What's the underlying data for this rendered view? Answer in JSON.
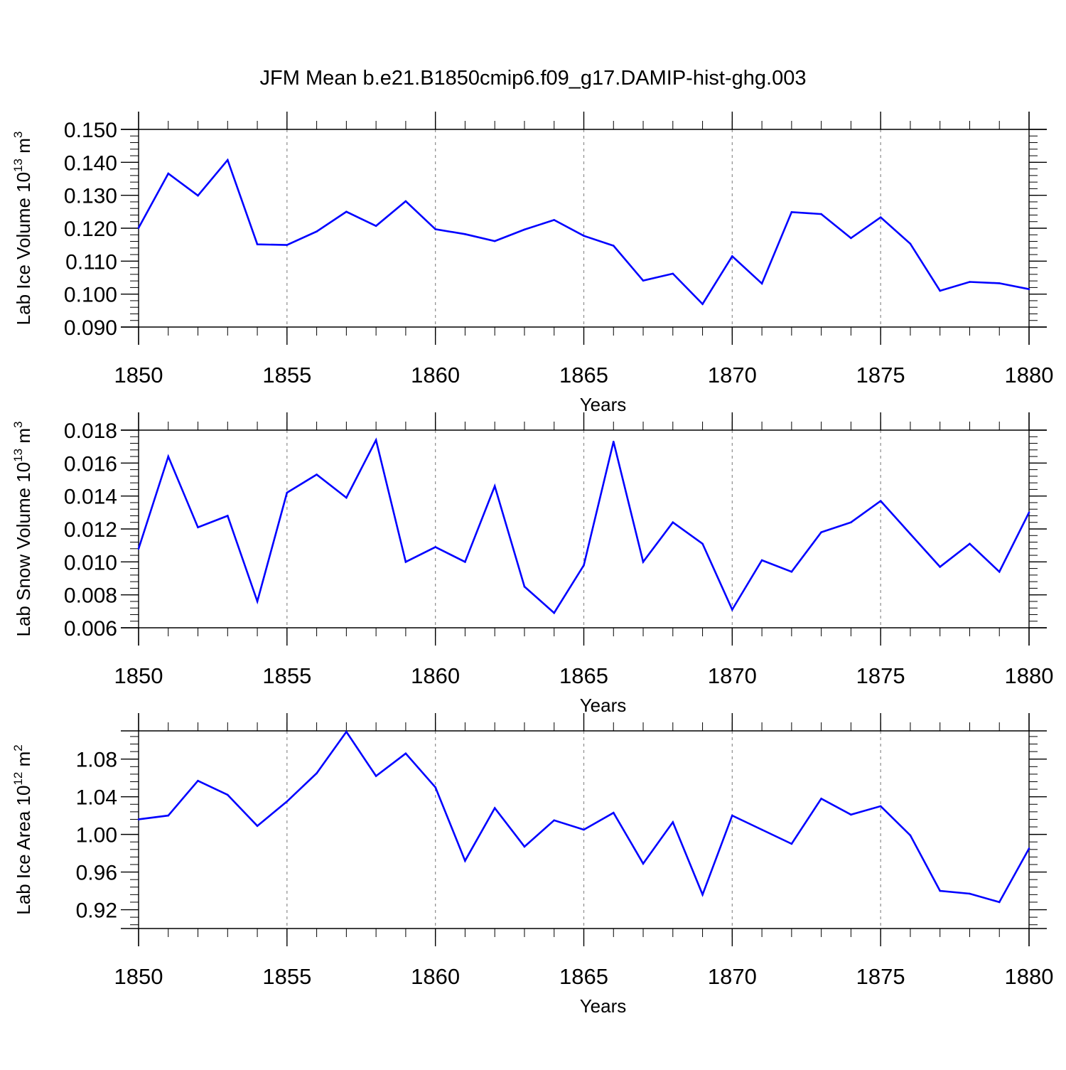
{
  "title": "JFM Mean b.e21.B1850cmip6.f09_g17.DAMIP-hist-ghg.003",
  "colors": {
    "line": "#0000ff",
    "axis": "#000000",
    "grid": "#8c8c8c"
  },
  "chart_data": [
    {
      "type": "line",
      "title": "JFM Mean b.e21.B1850cmip6.f09_g17.DAMIP-hist-ghg.003",
      "xlabel": "Years",
      "ylabel_text": "Lab Ice Volume 10",
      "ylabel_exp": "13",
      "ylabel_unit": " m",
      "ylabel_unit_exp": "3",
      "xlim": [
        1850,
        1880
      ],
      "ylim": [
        0.09,
        0.15
      ],
      "xticks": [
        1850,
        1855,
        1860,
        1865,
        1870,
        1875,
        1880
      ],
      "xtick_labels": [
        "1850",
        "1855",
        "1860",
        "1865",
        "1870",
        "1875",
        "1880"
      ],
      "yticks": [
        0.09,
        0.1,
        0.11,
        0.12,
        0.13,
        0.14,
        0.15
      ],
      "ytick_labels": [
        "0.090",
        "0.100",
        "0.110",
        "0.120",
        "0.130",
        "0.140",
        "0.150"
      ],
      "x": [
        1850,
        1851,
        1852,
        1853,
        1854,
        1855,
        1856,
        1857,
        1858,
        1859,
        1860,
        1861,
        1862,
        1863,
        1864,
        1865,
        1866,
        1867,
        1868,
        1869,
        1870,
        1871,
        1872,
        1873,
        1874,
        1875,
        1876,
        1877,
        1878,
        1879,
        1880
      ],
      "values": [
        0.1201,
        0.1366,
        0.1299,
        0.1407,
        0.1151,
        0.1149,
        0.119,
        0.125,
        0.1207,
        0.1282,
        0.1197,
        0.1182,
        0.1161,
        0.1196,
        0.1225,
        0.1177,
        0.1147,
        0.1041,
        0.1062,
        0.097,
        0.1115,
        0.1032,
        0.1249,
        0.1243,
        0.117,
        0.1233,
        0.1153,
        0.101,
        0.1037,
        0.1033,
        0.1015
      ]
    },
    {
      "type": "line",
      "xlabel": "Years",
      "ylabel_text": "Lab Snow Volume 10",
      "ylabel_exp": "13",
      "ylabel_unit": " m",
      "ylabel_unit_exp": "3",
      "xlim": [
        1850,
        1880
      ],
      "ylim": [
        0.006,
        0.018
      ],
      "xticks": [
        1850,
        1855,
        1860,
        1865,
        1870,
        1875,
        1880
      ],
      "xtick_labels": [
        "1850",
        "1855",
        "1860",
        "1865",
        "1870",
        "1875",
        "1880"
      ],
      "yticks": [
        0.006,
        0.008,
        0.01,
        0.012,
        0.014,
        0.016,
        0.018
      ],
      "ytick_labels": [
        "0.006",
        "0.008",
        "0.010",
        "0.012",
        "0.014",
        "0.016",
        "0.018"
      ],
      "x": [
        1850,
        1851,
        1852,
        1853,
        1854,
        1855,
        1856,
        1857,
        1858,
        1859,
        1860,
        1861,
        1862,
        1863,
        1864,
        1865,
        1866,
        1867,
        1868,
        1869,
        1870,
        1871,
        1872,
        1873,
        1874,
        1875,
        1876,
        1877,
        1878,
        1879,
        1880
      ],
      "values": [
        0.0108,
        0.0164,
        0.0121,
        0.0128,
        0.0076,
        0.0142,
        0.0153,
        0.0139,
        0.0174,
        0.01,
        0.0109,
        0.01,
        0.0146,
        0.0085,
        0.0069,
        0.0098,
        0.0173,
        0.01,
        0.0124,
        0.0111,
        0.0071,
        0.0101,
        0.0094,
        0.0118,
        0.0124,
        0.0137,
        0.0117,
        0.0097,
        0.0111,
        0.0094,
        0.013
      ]
    },
    {
      "type": "line",
      "xlabel": "Years",
      "ylabel_text": "Lab Ice Area 10",
      "ylabel_exp": "12",
      "ylabel_unit": " m",
      "ylabel_unit_exp": "2",
      "xlim": [
        1850,
        1880
      ],
      "ylim": [
        0.9,
        1.11
      ],
      "xticks": [
        1850,
        1855,
        1860,
        1865,
        1870,
        1875,
        1880
      ],
      "xtick_labels": [
        "1850",
        "1855",
        "1860",
        "1865",
        "1870",
        "1875",
        "1880"
      ],
      "yticks": [
        0.92,
        0.96,
        1.0,
        1.04,
        1.08
      ],
      "ytick_labels": [
        "0.92",
        "0.96",
        "1.00",
        "1.04",
        "1.08"
      ],
      "x": [
        1850,
        1851,
        1852,
        1853,
        1854,
        1855,
        1856,
        1857,
        1858,
        1859,
        1860,
        1861,
        1862,
        1863,
        1864,
        1865,
        1866,
        1867,
        1868,
        1869,
        1870,
        1871,
        1872,
        1873,
        1874,
        1875,
        1876,
        1877,
        1878,
        1879,
        1880
      ],
      "values": [
        1.016,
        1.02,
        1.057,
        1.042,
        1.009,
        1.035,
        1.065,
        1.109,
        1.062,
        1.086,
        1.05,
        0.972,
        1.028,
        0.987,
        1.015,
        1.005,
        1.023,
        0.969,
        1.013,
        0.936,
        1.02,
        1.005,
        0.99,
        1.038,
        1.021,
        1.03,
        0.999,
        0.94,
        0.937,
        0.928,
        0.985
      ]
    }
  ]
}
